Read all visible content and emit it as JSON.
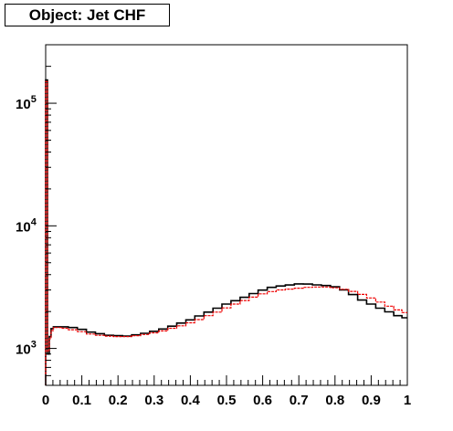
{
  "title": "Object: Jet CHF",
  "colors": {
    "series_black": "#000000",
    "series_red": "#ee0000"
  },
  "chart_data": {
    "type": "line",
    "title": "Object: Jet CHF",
    "xlabel": "",
    "ylabel": "",
    "xlim": [
      0,
      1
    ],
    "ylim": [
      500,
      300000
    ],
    "y_scale": "log",
    "grid": false,
    "legend": "none",
    "x_tick_labels": [
      "0",
      "0.1",
      "0.2",
      "0.3",
      "0.4",
      "0.5",
      "0.6",
      "0.7",
      "0.8",
      "0.9",
      "1"
    ],
    "y_tick_labels": [
      {
        "value": 1000,
        "base": "10",
        "exp": "3"
      },
      {
        "value": 10000,
        "base": "10",
        "exp": "4"
      },
      {
        "value": 100000,
        "base": "10",
        "exp": "5"
      }
    ],
    "series": [
      {
        "color": "#000000",
        "x": [
          0.0025,
          0.0075,
          0.0125,
          0.0175,
          0.025,
          0.035,
          0.05,
          0.075,
          0.1,
          0.125,
          0.15,
          0.175,
          0.2,
          0.225,
          0.25,
          0.275,
          0.3,
          0.325,
          0.35,
          0.375,
          0.4,
          0.425,
          0.45,
          0.475,
          0.5,
          0.525,
          0.55,
          0.575,
          0.6,
          0.625,
          0.65,
          0.675,
          0.7,
          0.725,
          0.75,
          0.775,
          0.8,
          0.825,
          0.85,
          0.875,
          0.9,
          0.925,
          0.95,
          0.975,
          0.995
        ],
        "y": [
          155000,
          900,
          1250,
          1450,
          1500,
          1500,
          1500,
          1480,
          1430,
          1360,
          1320,
          1280,
          1270,
          1260,
          1290,
          1330,
          1380,
          1440,
          1520,
          1610,
          1710,
          1840,
          1980,
          2130,
          2300,
          2450,
          2610,
          2800,
          2990,
          3150,
          3230,
          3290,
          3360,
          3350,
          3300,
          3260,
          3180,
          3000,
          2750,
          2480,
          2300,
          2130,
          1990,
          1850,
          1780
        ]
      },
      {
        "color": "#ee0000",
        "x": [
          0.0025,
          0.0075,
          0.0125,
          0.0175,
          0.025,
          0.035,
          0.05,
          0.075,
          0.1,
          0.125,
          0.15,
          0.175,
          0.2,
          0.225,
          0.25,
          0.275,
          0.3,
          0.325,
          0.35,
          0.375,
          0.4,
          0.425,
          0.45,
          0.475,
          0.5,
          0.525,
          0.55,
          0.575,
          0.6,
          0.625,
          0.65,
          0.675,
          0.7,
          0.725,
          0.75,
          0.775,
          0.8,
          0.825,
          0.85,
          0.875,
          0.9,
          0.925,
          0.95,
          0.975,
          0.995
        ],
        "y": [
          150000,
          950,
          1200,
          1400,
          1480,
          1480,
          1460,
          1420,
          1370,
          1310,
          1280,
          1260,
          1250,
          1250,
          1270,
          1300,
          1340,
          1390,
          1460,
          1530,
          1620,
          1720,
          1850,
          1980,
          2140,
          2300,
          2460,
          2620,
          2790,
          2910,
          3000,
          3050,
          3100,
          3150,
          3170,
          3170,
          3120,
          3040,
          2920,
          2760,
          2580,
          2390,
          2210,
          2060,
          1960
        ]
      }
    ]
  }
}
